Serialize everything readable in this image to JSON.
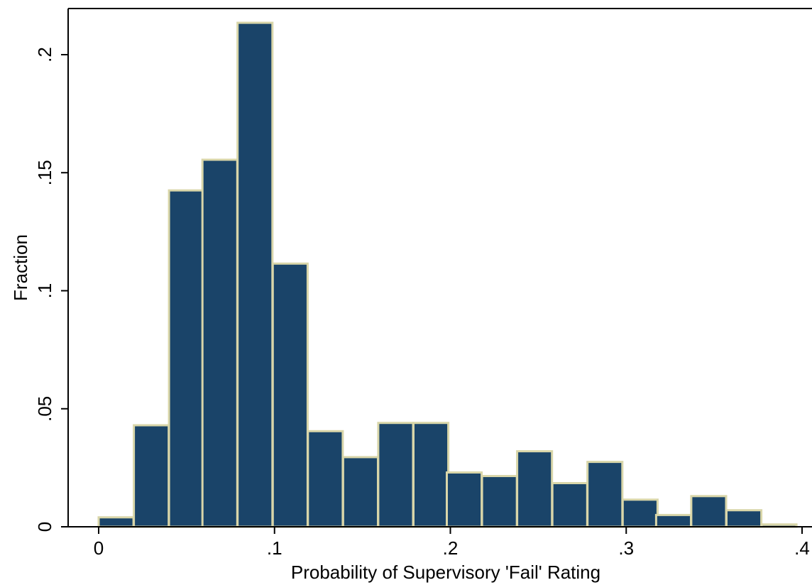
{
  "chart_data": {
    "type": "bar",
    "title": "",
    "xlabel": "Probability of Supervisory 'Fail' Rating",
    "ylabel": "Fraction",
    "xlim": [
      0,
      0.4
    ],
    "ylim": [
      0,
      0.2
    ],
    "grid": false,
    "legend": "none",
    "x_ticks": [
      {
        "value": 0,
        "label": "0"
      },
      {
        "value": 0.1,
        "label": ".1"
      },
      {
        "value": 0.2,
        "label": ".2"
      },
      {
        "value": 0.3,
        "label": ".3"
      },
      {
        "value": 0.4,
        "label": ".4"
      }
    ],
    "y_ticks": [
      {
        "value": 0,
        "label": "0"
      },
      {
        "value": 0.05,
        "label": ".05"
      },
      {
        "value": 0.1,
        "label": ".1"
      },
      {
        "value": 0.15,
        "label": ".15"
      },
      {
        "value": 0.2,
        "label": ".2"
      }
    ],
    "bin_width": 0.0198,
    "bins": [
      {
        "x0": 0.0,
        "value": 0.004
      },
      {
        "x0": 0.02,
        "value": 0.043
      },
      {
        "x0": 0.04,
        "value": 0.1425
      },
      {
        "x0": 0.059,
        "value": 0.1555
      },
      {
        "x0": 0.079,
        "value": 0.2135
      },
      {
        "x0": 0.099,
        "value": 0.1115
      },
      {
        "x0": 0.119,
        "value": 0.0405
      },
      {
        "x0": 0.139,
        "value": 0.0295
      },
      {
        "x0": 0.159,
        "value": 0.044
      },
      {
        "x0": 0.179,
        "value": 0.044
      },
      {
        "x0": 0.198,
        "value": 0.023
      },
      {
        "x0": 0.218,
        "value": 0.0215
      },
      {
        "x0": 0.238,
        "value": 0.032
      },
      {
        "x0": 0.258,
        "value": 0.0185
      },
      {
        "x0": 0.278,
        "value": 0.0275
      },
      {
        "x0": 0.298,
        "value": 0.0115
      },
      {
        "x0": 0.317,
        "value": 0.005
      },
      {
        "x0": 0.337,
        "value": 0.013
      },
      {
        "x0": 0.357,
        "value": 0.007
      },
      {
        "x0": 0.377,
        "value": 0.001
      }
    ],
    "colors": {
      "bar_fill": "#1a4469",
      "bar_stroke": "#d9d6a9",
      "axis": "#000000"
    }
  }
}
